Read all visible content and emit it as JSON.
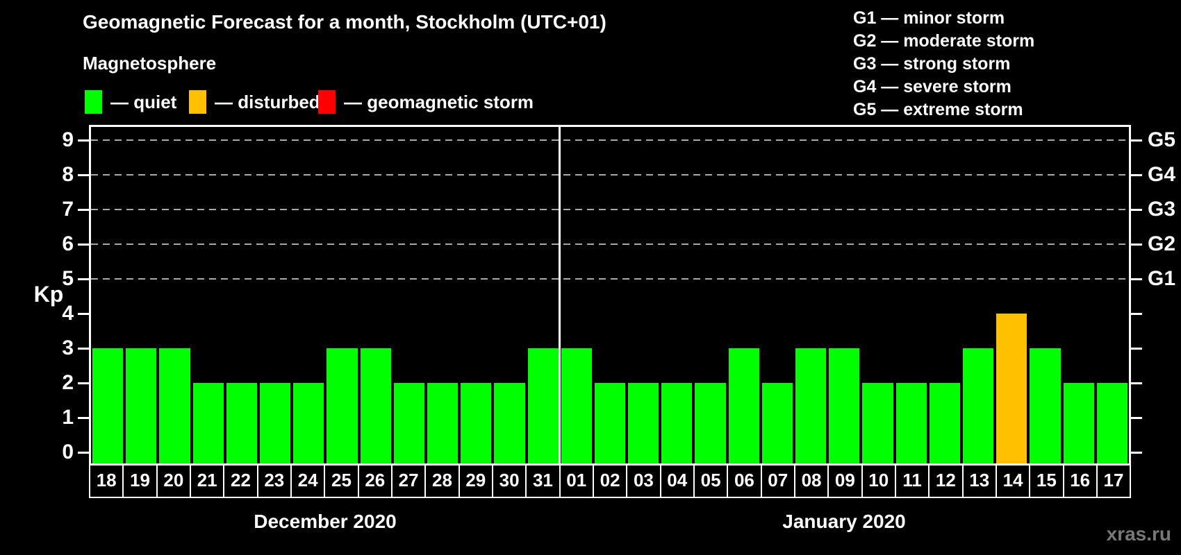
{
  "title": "Geomagnetic Forecast for a month, Stockholm (UTC+01)",
  "subtitle": "Magnetosphere",
  "legend": [
    {
      "state": "quiet",
      "label": "— quiet"
    },
    {
      "state": "disturbed",
      "label": "— disturbed"
    },
    {
      "state": "storm",
      "label": "— geomagnetic storm"
    }
  ],
  "g_legend": [
    "G1 — minor storm",
    "G2 — moderate storm",
    "G3 — strong storm",
    "G4 — severe storm",
    "G5 — extreme storm"
  ],
  "watermark": "xras.ru",
  "chart_data": {
    "type": "bar",
    "ylabel_left": "Kp",
    "ylim": [
      -0.32,
      9.38
    ],
    "yticks": [
      0,
      1,
      2,
      3,
      4,
      5,
      6,
      7,
      8,
      9
    ],
    "right_axis_labels": [
      {
        "value": 5,
        "label": "G1"
      },
      {
        "value": 6,
        "label": "G2"
      },
      {
        "value": 7,
        "label": "G3"
      },
      {
        "value": 8,
        "label": "G4"
      },
      {
        "value": 9,
        "label": "G5"
      }
    ],
    "gridlines_at": [
      5,
      6,
      7,
      8,
      9
    ],
    "grid": "dashed horizontal lines at storm levels only",
    "legend_position": "top-left",
    "bar_colors": {
      "quiet": "#00ff00",
      "disturbed": "#ffc000",
      "storm": "#ff0000"
    },
    "months": [
      {
        "label": "December 2020",
        "bars": [
          {
            "day": "18",
            "kp": 3,
            "state": "quiet"
          },
          {
            "day": "19",
            "kp": 3,
            "state": "quiet"
          },
          {
            "day": "20",
            "kp": 3,
            "state": "quiet"
          },
          {
            "day": "21",
            "kp": 2,
            "state": "quiet"
          },
          {
            "day": "22",
            "kp": 2,
            "state": "quiet"
          },
          {
            "day": "23",
            "kp": 2,
            "state": "quiet"
          },
          {
            "day": "24",
            "kp": 2,
            "state": "quiet"
          },
          {
            "day": "25",
            "kp": 3,
            "state": "quiet"
          },
          {
            "day": "26",
            "kp": 3,
            "state": "quiet"
          },
          {
            "day": "27",
            "kp": 2,
            "state": "quiet"
          },
          {
            "day": "28",
            "kp": 2,
            "state": "quiet"
          },
          {
            "day": "29",
            "kp": 2,
            "state": "quiet"
          },
          {
            "day": "30",
            "kp": 2,
            "state": "quiet"
          },
          {
            "day": "31",
            "kp": 3,
            "state": "quiet"
          }
        ]
      },
      {
        "label": "January 2020",
        "bars": [
          {
            "day": "01",
            "kp": 3,
            "state": "quiet"
          },
          {
            "day": "02",
            "kp": 2,
            "state": "quiet"
          },
          {
            "day": "03",
            "kp": 2,
            "state": "quiet"
          },
          {
            "day": "04",
            "kp": 2,
            "state": "quiet"
          },
          {
            "day": "05",
            "kp": 2,
            "state": "quiet"
          },
          {
            "day": "06",
            "kp": 3,
            "state": "quiet"
          },
          {
            "day": "07",
            "kp": 2,
            "state": "quiet"
          },
          {
            "day": "08",
            "kp": 3,
            "state": "quiet"
          },
          {
            "day": "09",
            "kp": 3,
            "state": "quiet"
          },
          {
            "day": "10",
            "kp": 2,
            "state": "quiet"
          },
          {
            "day": "11",
            "kp": 2,
            "state": "quiet"
          },
          {
            "day": "12",
            "kp": 2,
            "state": "quiet"
          },
          {
            "day": "13",
            "kp": 3,
            "state": "quiet"
          },
          {
            "day": "14",
            "kp": 4,
            "state": "disturbed"
          },
          {
            "day": "15",
            "kp": 3,
            "state": "quiet"
          },
          {
            "day": "16",
            "kp": 2,
            "state": "quiet"
          },
          {
            "day": "17",
            "kp": 2,
            "state": "quiet"
          }
        ]
      }
    ]
  }
}
